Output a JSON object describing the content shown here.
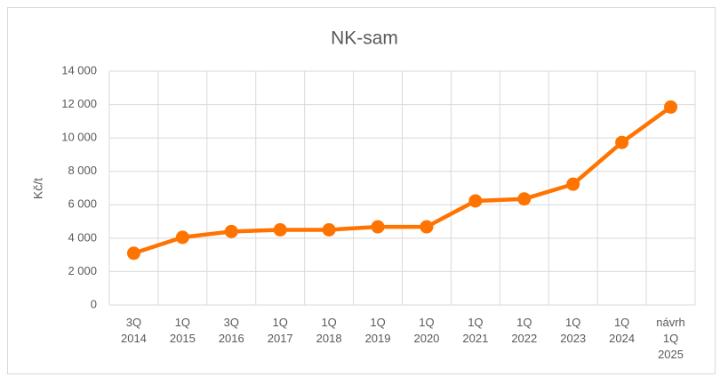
{
  "chart_data": {
    "type": "line",
    "title": "NK-sam",
    "y_label": "Kč/t",
    "categories": [
      "3Q 2014",
      "1Q 2015",
      "3Q 2016",
      "1Q 2017",
      "1Q 2018",
      "1Q 2019",
      "1Q 2020",
      "1Q 2021",
      "1Q 2022",
      "1Q 2023",
      "1Q 2024",
      "návrh 1Q 2025"
    ],
    "series": [
      {
        "name": "NK-sam",
        "color": "#ff7300",
        "values": [
          3100,
          4050,
          4400,
          4500,
          4500,
          4680,
          4680,
          6230,
          6350,
          7230,
          9730,
          11850
        ]
      }
    ],
    "ylim": [
      0,
      14000
    ],
    "yticks": [
      0,
      {
        "value": 2000,
        "label": "2 000"
      },
      {
        "value": 4000,
        "label": "4 000"
      },
      {
        "value": 6000,
        "label": "6 000"
      },
      {
        "value": 8000,
        "label": "8 000"
      },
      {
        "value": 10000,
        "label": "10 000"
      },
      {
        "value": 12000,
        "label": "12 000"
      },
      {
        "value": 14000,
        "label": "14 000"
      }
    ],
    "grid": true
  }
}
